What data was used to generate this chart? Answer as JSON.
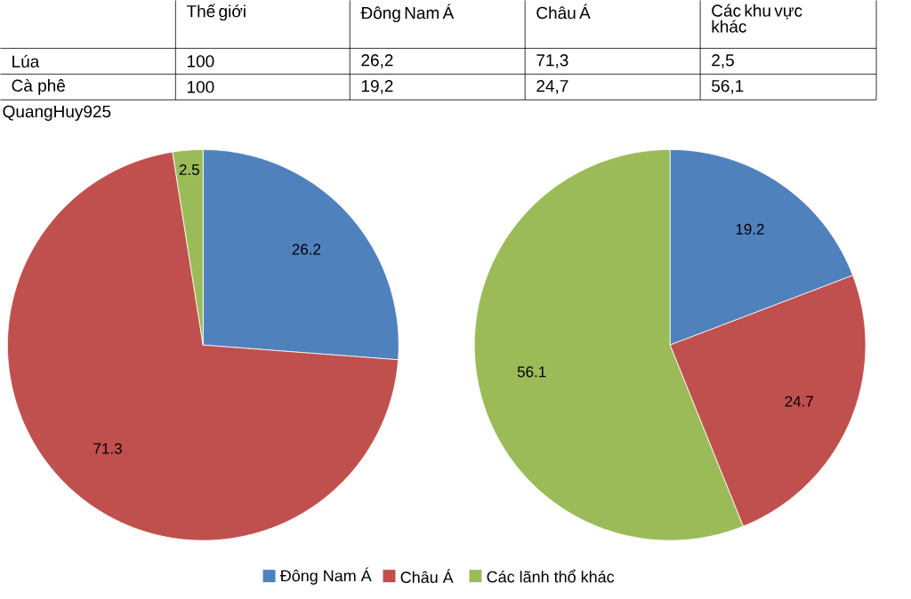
{
  "chart_data": [
    {
      "type": "other",
      "annotations": [
        "Thế giới",
        "Đông Nam Á",
        "Châu Á",
        "Các khu vực khác",
        "Lúa",
        "100",
        "26,2",
        "71,3",
        "2,5",
        "Cà phê",
        "100",
        "19,2",
        "24,7",
        "56,1",
        "QuangHuy925"
      ]
    },
    {
      "type": "pie",
      "categories": [
        "Đông Nam Á",
        "Châu Á",
        "Các lãnh thổ khác"
      ],
      "values": [
        26.2,
        71.3,
        2.5
      ],
      "colors": [
        "#4f81bd",
        "#c0504d",
        "#9bbb59"
      ],
      "data_labels": true,
      "legend": "bottom"
    },
    {
      "type": "pie",
      "categories": [
        null,
        null,
        null
      ],
      "values": [
        19.2,
        24.7,
        56.1
      ],
      "colors": [
        "#4f81bd",
        "#c0504d",
        "#9bbb59"
      ],
      "data_labels": true
    }
  ]
}
